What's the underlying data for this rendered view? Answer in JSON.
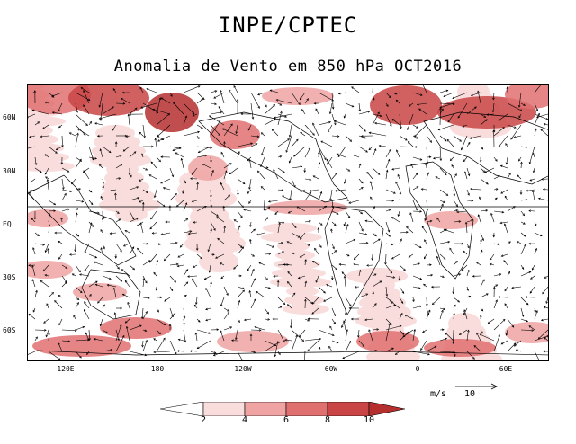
{
  "header": {
    "title": "INPE/CPTEC",
    "subtitle": "Anomalia de Vento em 850 hPa OCT2016"
  },
  "map": {
    "lat_labels": [
      "60N",
      "30N",
      "EQ",
      "30S",
      "60S"
    ],
    "lon_labels": [
      "120E",
      "180",
      "120W",
      "60W",
      "0",
      "60E"
    ],
    "colors": {
      "level_0": "#ffffff",
      "level_1": "#f9dcdc",
      "level_2": "#f0a3a3",
      "level_3": "#e07070",
      "level_4": "#c94545",
      "level_5": "#b52f2f",
      "vector": "#000000",
      "coast": "#000000"
    }
  },
  "reference_vector": {
    "units": "m/s",
    "value": "10"
  },
  "colorbar": {
    "labels": [
      "2",
      "4",
      "6",
      "8",
      "10"
    ],
    "colors": [
      "#ffffff",
      "#f9dcdc",
      "#f0a3a3",
      "#e07070",
      "#c94545",
      "#b52f2f"
    ]
  }
}
